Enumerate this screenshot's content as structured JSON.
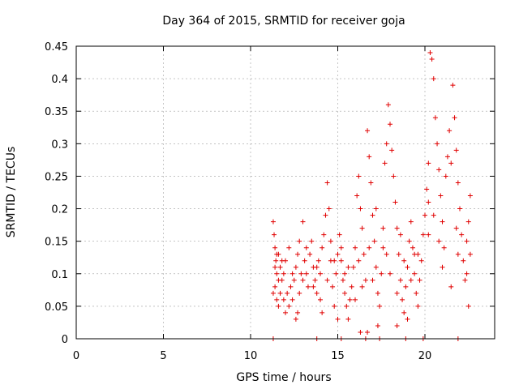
{
  "chart_data": {
    "type": "scatter",
    "title": "Day 364 of 2015, SRMTID for receiver goja",
    "xlabel": "GPS time / hours",
    "ylabel": "SRMTID / TECUs",
    "xlim": [
      0,
      24
    ],
    "ylim": [
      0,
      0.45
    ],
    "xticks": [
      0,
      5,
      10,
      15,
      20
    ],
    "xtick_labels": [
      "0",
      "5",
      "10",
      "15",
      "20"
    ],
    "yticks": [
      0,
      0.05,
      0.1,
      0.15,
      0.2,
      0.25,
      0.3,
      0.35,
      0.4,
      0.45
    ],
    "ytick_labels": [
      "0",
      "0.05",
      "0.1",
      "0.15",
      "0.2",
      "0.25",
      "0.3",
      "0.35",
      "0.4",
      "0.45"
    ],
    "grid": true,
    "marker": "+",
    "color": "#e00000",
    "series": [
      {
        "name": "goja",
        "points": [
          [
            11.3,
            0.18
          ],
          [
            11.35,
            0.16
          ],
          [
            11.4,
            0.14
          ],
          [
            11.45,
            0.12
          ],
          [
            11.5,
            0.1
          ],
          [
            11.4,
            0.08
          ],
          [
            11.5,
            0.06
          ],
          [
            11.6,
            0.05
          ],
          [
            11.7,
            0.07
          ],
          [
            11.8,
            0.09
          ],
          [
            11.9,
            0.06
          ],
          [
            12.0,
            0.04
          ],
          [
            11.6,
            0.13
          ],
          [
            11.7,
            0.11
          ],
          [
            11.8,
            0.12
          ],
          [
            11.9,
            0.1
          ],
          [
            12.1,
            0.07
          ],
          [
            12.2,
            0.05
          ],
          [
            12.3,
            0.08
          ],
          [
            12.4,
            0.06
          ],
          [
            12.5,
            0.09
          ],
          [
            12.6,
            0.11
          ],
          [
            12.7,
            0.13
          ],
          [
            12.8,
            0.15
          ],
          [
            12.9,
            0.1
          ],
          [
            13.0,
            0.18
          ],
          [
            12.6,
            0.03
          ],
          [
            12.7,
            0.04
          ],
          [
            13.1,
            0.12
          ],
          [
            13.2,
            0.1
          ],
          [
            13.3,
            0.08
          ],
          [
            13.4,
            0.13
          ],
          [
            13.5,
            0.15
          ],
          [
            13.6,
            0.11
          ],
          [
            13.7,
            0.09
          ],
          [
            13.8,
            0.07
          ],
          [
            13.9,
            0.12
          ],
          [
            14.0,
            0.1
          ],
          [
            14.1,
            0.14
          ],
          [
            14.2,
            0.16
          ],
          [
            14.3,
            0.19
          ],
          [
            14.4,
            0.24
          ],
          [
            14.5,
            0.2
          ],
          [
            14.6,
            0.12
          ],
          [
            14.7,
            0.08
          ],
          [
            14.8,
            0.05
          ],
          [
            14.9,
            0.1
          ],
          [
            15.0,
            0.13
          ],
          [
            15.1,
            0.16
          ],
          [
            15.2,
            0.12
          ],
          [
            15.3,
            0.09
          ],
          [
            15.4,
            0.07
          ],
          [
            15.5,
            0.05
          ],
          [
            15.6,
            0.03
          ],
          [
            15.7,
            0.06
          ],
          [
            15.8,
            0.08
          ],
          [
            15.9,
            0.11
          ],
          [
            16.0,
            0.14
          ],
          [
            16.1,
            0.22
          ],
          [
            16.2,
            0.25
          ],
          [
            16.3,
            0.2
          ],
          [
            16.4,
            0.17
          ],
          [
            16.5,
            0.13
          ],
          [
            16.6,
            0.09
          ],
          [
            16.7,
            0.32
          ],
          [
            16.8,
            0.28
          ],
          [
            16.9,
            0.24
          ],
          [
            17.0,
            0.19
          ],
          [
            17.1,
            0.15
          ],
          [
            17.2,
            0.11
          ],
          [
            17.3,
            0.07
          ],
          [
            17.4,
            0.05
          ],
          [
            17.5,
            0.1
          ],
          [
            17.6,
            0.14
          ],
          [
            17.7,
            0.27
          ],
          [
            17.8,
            0.3
          ],
          [
            17.9,
            0.36
          ],
          [
            18.0,
            0.33
          ],
          [
            18.1,
            0.29
          ],
          [
            18.2,
            0.25
          ],
          [
            18.3,
            0.21
          ],
          [
            18.4,
            0.17
          ],
          [
            18.5,
            0.13
          ],
          [
            18.6,
            0.09
          ],
          [
            18.7,
            0.06
          ],
          [
            18.8,
            0.04
          ],
          [
            18.9,
            0.08
          ],
          [
            19.0,
            0.11
          ],
          [
            19.1,
            0.15
          ],
          [
            19.2,
            0.18
          ],
          [
            19.3,
            0.14
          ],
          [
            19.4,
            0.1
          ],
          [
            19.5,
            0.07
          ],
          [
            19.6,
            0.05
          ],
          [
            19.7,
            0.09
          ],
          [
            19.8,
            0.12
          ],
          [
            19.9,
            0.16
          ],
          [
            20.0,
            0.19
          ],
          [
            20.1,
            0.23
          ],
          [
            20.2,
            0.27
          ],
          [
            20.3,
            0.44
          ],
          [
            20.4,
            0.43
          ],
          [
            20.5,
            0.4
          ],
          [
            20.6,
            0.34
          ],
          [
            20.7,
            0.3
          ],
          [
            20.8,
            0.26
          ],
          [
            20.9,
            0.22
          ],
          [
            21.0,
            0.18
          ],
          [
            21.1,
            0.14
          ],
          [
            21.2,
            0.25
          ],
          [
            21.3,
            0.28
          ],
          [
            21.4,
            0.32
          ],
          [
            21.5,
            0.27
          ],
          [
            21.6,
            0.39
          ],
          [
            21.7,
            0.34
          ],
          [
            21.8,
            0.29
          ],
          [
            21.9,
            0.24
          ],
          [
            22.0,
            0.2
          ],
          [
            22.1,
            0.16
          ],
          [
            22.2,
            0.12
          ],
          [
            22.3,
            0.09
          ],
          [
            22.4,
            0.15
          ],
          [
            22.5,
            0.18
          ],
          [
            22.6,
            0.22
          ],
          [
            22.5,
            0.05
          ],
          [
            22.4,
            0.1
          ],
          [
            21.9,
            0.13
          ],
          [
            21.5,
            0.08
          ],
          [
            20.8,
            0.15
          ],
          [
            20.5,
            0.19
          ],
          [
            20.2,
            0.21
          ],
          [
            19.6,
            0.13
          ],
          [
            19.2,
            0.09
          ],
          [
            18.8,
            0.12
          ],
          [
            18.4,
            0.07
          ],
          [
            18.0,
            0.1
          ],
          [
            17.6,
            0.17
          ],
          [
            17.2,
            0.2
          ],
          [
            16.8,
            0.14
          ],
          [
            16.4,
            0.08
          ],
          [
            16.0,
            0.06
          ],
          [
            15.6,
            0.11
          ],
          [
            15.2,
            0.14
          ],
          [
            14.8,
            0.12
          ],
          [
            14.4,
            0.09
          ],
          [
            14.0,
            0.06
          ],
          [
            13.6,
            0.08
          ],
          [
            13.2,
            0.14
          ],
          [
            12.8,
            0.07
          ],
          [
            12.4,
            0.1
          ],
          [
            12.0,
            0.12
          ],
          [
            11.6,
            0.09
          ],
          [
            11.3,
            0.07
          ],
          [
            11.4,
            0.11
          ],
          [
            11.5,
            0.13
          ],
          [
            12.2,
            0.14
          ],
          [
            13.0,
            0.09
          ],
          [
            13.8,
            0.11
          ],
          [
            14.6,
            0.15
          ],
          [
            15.4,
            0.1
          ],
          [
            16.2,
            0.12
          ],
          [
            17.0,
            0.09
          ],
          [
            17.8,
            0.13
          ],
          [
            18.6,
            0.16
          ],
          [
            19.4,
            0.13
          ],
          [
            20.2,
            0.16
          ],
          [
            21.0,
            0.11
          ],
          [
            21.8,
            0.17
          ],
          [
            22.6,
            0.13
          ],
          [
            16.6,
            0.0
          ],
          [
            16.7,
            0.01
          ],
          [
            17.4,
            0.0
          ],
          [
            18.9,
            0.0
          ],
          [
            19.9,
            0.0
          ],
          [
            11.3,
            0.0
          ],
          [
            13.8,
            0.0
          ],
          [
            15.2,
            0.0
          ],
          [
            21.9,
            0.0
          ],
          [
            14.1,
            0.04
          ],
          [
            15.0,
            0.03
          ],
          [
            16.3,
            0.01
          ],
          [
            17.3,
            0.02
          ],
          [
            18.4,
            0.02
          ],
          [
            19.0,
            0.03
          ]
        ]
      }
    ]
  }
}
